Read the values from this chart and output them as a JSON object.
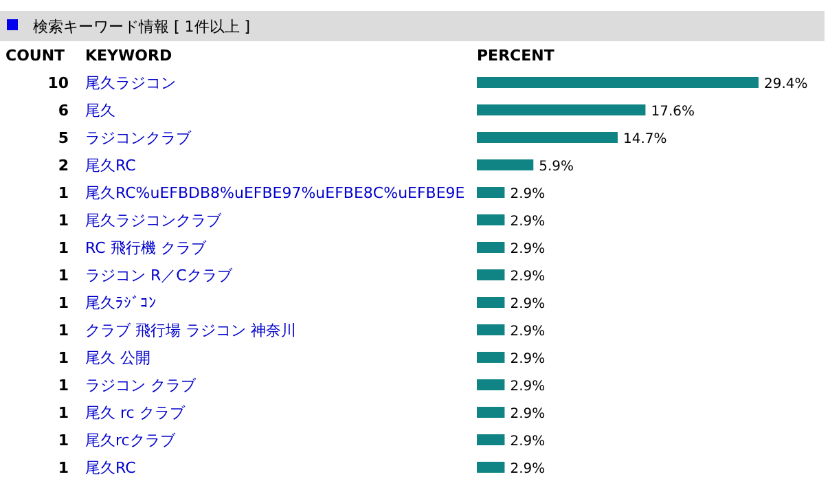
{
  "chart_data": {
    "type": "bar",
    "orientation": "horizontal",
    "title": "検索キーワード情報 [ 1件以上 ]",
    "y2label": "COUNT",
    "ylabel": "KEYWORD",
    "xlabel": "PERCENT",
    "categories": [
      "尾久ラジコン",
      "尾久",
      "ラジコンクラブ",
      "尾久RC",
      "尾久RC%uEFBDB8%uEFBE97%uEFBE8C%uEFBE9E",
      "尾久ラジコンクラブ",
      "RC 飛行機 クラブ",
      "ラジコン R／Cクラブ",
      "尾久ﾗｼﾞｺﾝ",
      "クラブ 飛行場 ラジコン 神奈川",
      "尾久 公開",
      "ラジコン クラブ",
      "尾久 rc クラブ",
      "尾久rcクラブ",
      "尾久RC"
    ],
    "y2_categories": [
      "10",
      "6",
      "5",
      "2",
      "1",
      "1",
      "1",
      "1",
      "1",
      "1",
      "1",
      "1",
      "1",
      "1",
      "1"
    ],
    "values": [
      29.4,
      17.6,
      14.7,
      5.9,
      2.9,
      2.9,
      2.9,
      2.9,
      2.9,
      2.9,
      2.9,
      2.9,
      2.9,
      2.9,
      2.9
    ],
    "value_labels": [
      "29.4%",
      "17.6%",
      "14.7%",
      "5.9%",
      "2.9%",
      "2.9%",
      "2.9%",
      "2.9%",
      "2.9%",
      "2.9%",
      "2.9%",
      "2.9%",
      "2.9%",
      "2.9%",
      "2.9%"
    ],
    "color": "#108484"
  }
}
